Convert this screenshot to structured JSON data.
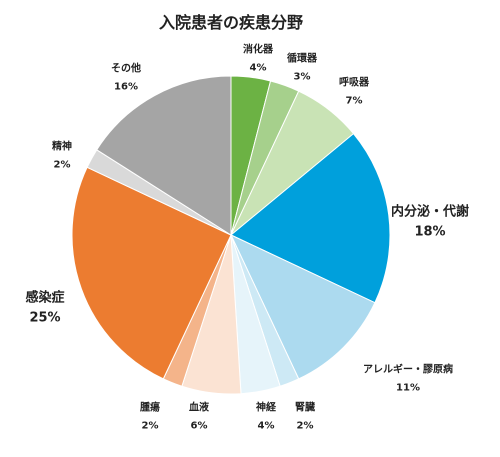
{
  "chart_data": {
    "type": "pie",
    "title": "入院患者の疾患分野",
    "slices": [
      {
        "label": "消化器",
        "value": 4,
        "value_label": "4%",
        "color": "#6cb244"
      },
      {
        "label": "循環器",
        "value": 3,
        "value_label": "3%",
        "color": "#a6d08c"
      },
      {
        "label": "呼吸器",
        "value": 7,
        "value_label": "7%",
        "color": "#c9e3b5"
      },
      {
        "label": "内分泌・代謝",
        "value": 18,
        "value_label": "18%",
        "color": "#00a0dc"
      },
      {
        "label": "アレルギー・膠原病",
        "value": 11,
        "value_label": "11%",
        "color": "#acdaef"
      },
      {
        "label": "腎臓",
        "value": 2,
        "value_label": "2%",
        "color": "#cde9f5"
      },
      {
        "label": "神経",
        "value": 4,
        "value_label": "4%",
        "color": "#e6f4fa"
      },
      {
        "label": "血液",
        "value": 6,
        "value_label": "6%",
        "color": "#fbe3d3"
      },
      {
        "label": "腫瘍",
        "value": 2,
        "value_label": "2%",
        "color": "#f4b48a"
      },
      {
        "label": "感染症",
        "value": 25,
        "value_label": "25%",
        "color": "#ec7c30"
      },
      {
        "label": "精神",
        "value": 2,
        "value_label": "2%",
        "color": "#d9d9d9"
      },
      {
        "label": "その他",
        "value": 16,
        "value_label": "16%",
        "color": "#a5a5a5"
      }
    ]
  }
}
